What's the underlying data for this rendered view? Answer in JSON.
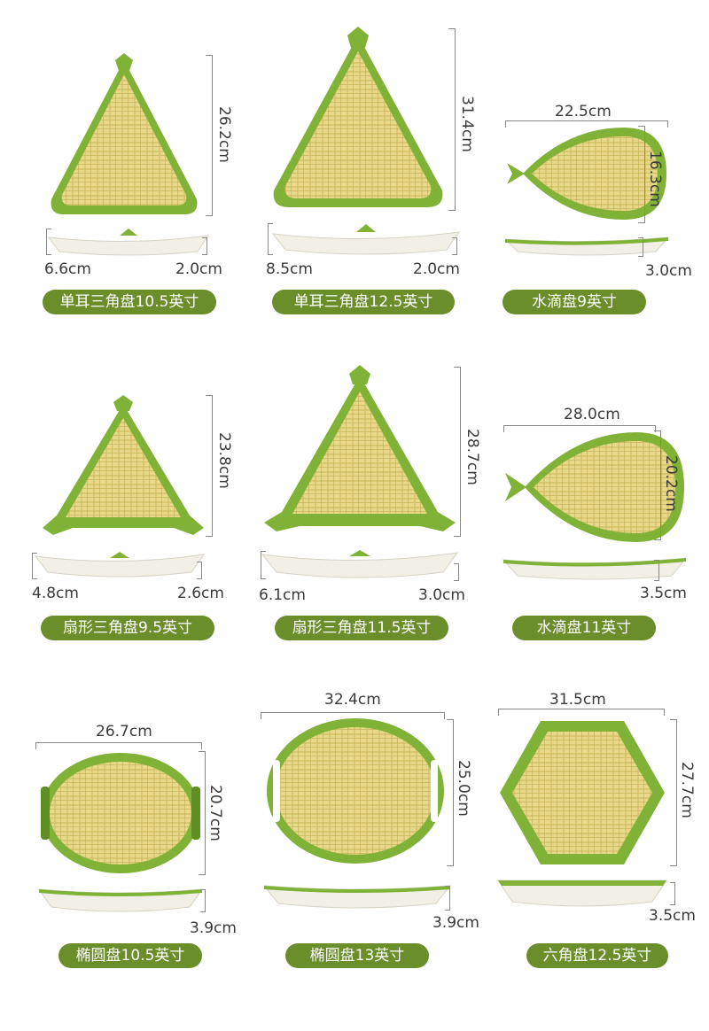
{
  "colors": {
    "rim": "#7fb236",
    "rim_dark": "#5f8e24",
    "weave": "#e8d98a",
    "weave_line": "#c9b45a",
    "label_bg": "#6a8f2a",
    "plate_side": "#f2f0e6"
  },
  "products": [
    {
      "name": "单耳三角盘10.5英寸",
      "length": "26.2cm",
      "width": "",
      "depth_left": "6.6cm",
      "height": "2.0cm",
      "shape": "triangle-ear"
    },
    {
      "name": "单耳三角盘12.5英寸",
      "length": "31.4cm",
      "width": "",
      "depth_left": "8.5cm",
      "height": "2.0cm",
      "shape": "triangle-ear"
    },
    {
      "name": "水滴盘9英寸",
      "length": "16.3cm",
      "width": "22.5cm",
      "depth_left": "",
      "height": "3.0cm",
      "shape": "drop"
    },
    {
      "name": "扇形三角盘9.5英寸",
      "length": "23.8cm",
      "width": "",
      "depth_left": "4.8cm",
      "height": "2.6cm",
      "shape": "triangle-fan"
    },
    {
      "name": "扇形三角盘11.5英寸",
      "length": "28.7cm",
      "width": "",
      "depth_left": "6.1cm",
      "height": "3.0cm",
      "shape": "triangle-fan"
    },
    {
      "name": "水滴盘11英寸",
      "length": "20.2cm",
      "width": "28.0cm",
      "depth_left": "",
      "height": "3.5cm",
      "shape": "drop"
    },
    {
      "name": "椭圆盘10.5英寸",
      "length": "20.7cm",
      "width": "26.7cm",
      "depth_left": "",
      "height": "3.9cm",
      "shape": "oval"
    },
    {
      "name": "椭圆盘13英寸",
      "length": "25.0cm",
      "width": "32.4cm",
      "depth_left": "",
      "height": "3.9cm",
      "shape": "oval-handle"
    },
    {
      "name": "六角盘12.5英寸",
      "length": "27.7cm",
      "width": "31.5cm",
      "depth_left": "",
      "height": "3.5cm",
      "shape": "hexagon"
    }
  ]
}
